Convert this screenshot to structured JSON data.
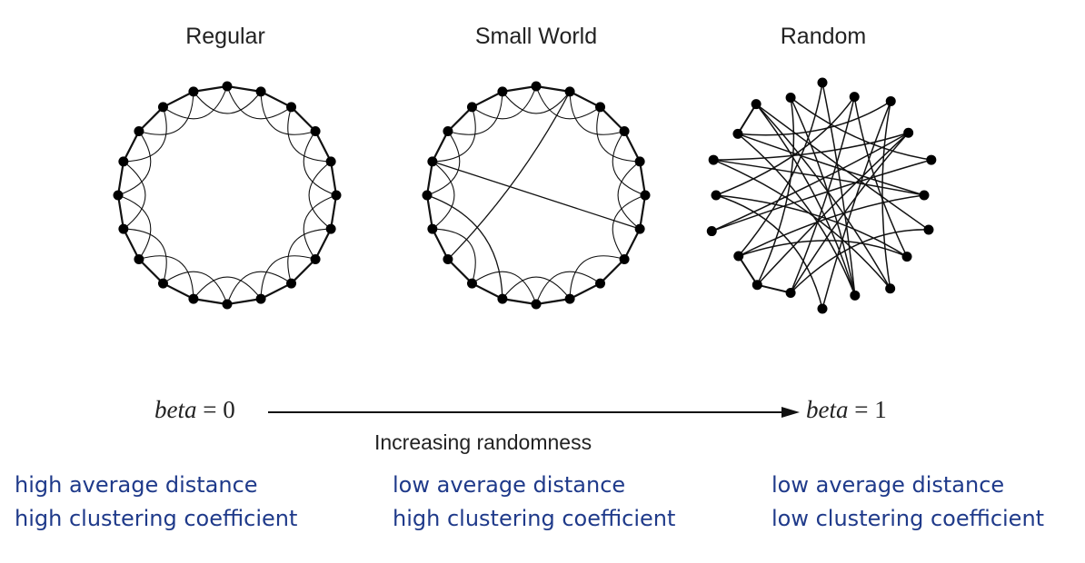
{
  "panels": [
    {
      "id": "regular",
      "title": "Regular",
      "caption_line1": "high average distance",
      "caption_line2": "high clustering coefficient"
    },
    {
      "id": "small",
      "title": "Small World",
      "caption_line1": "low average distance",
      "caption_line2": "high clustering coefficient"
    },
    {
      "id": "random",
      "title": "Random",
      "caption_line1": "low average distance",
      "caption_line2": "low clustering coefficient"
    }
  ],
  "axis": {
    "left_var": "beta",
    "left_eq": "= 0",
    "right_var": "beta",
    "right_eq": "= 1",
    "label": "Increasing randomness"
  },
  "colors": {
    "caption": "#1f3a8a",
    "graph": "#000000"
  },
  "network": {
    "nodes_per_ring": 20
  }
}
